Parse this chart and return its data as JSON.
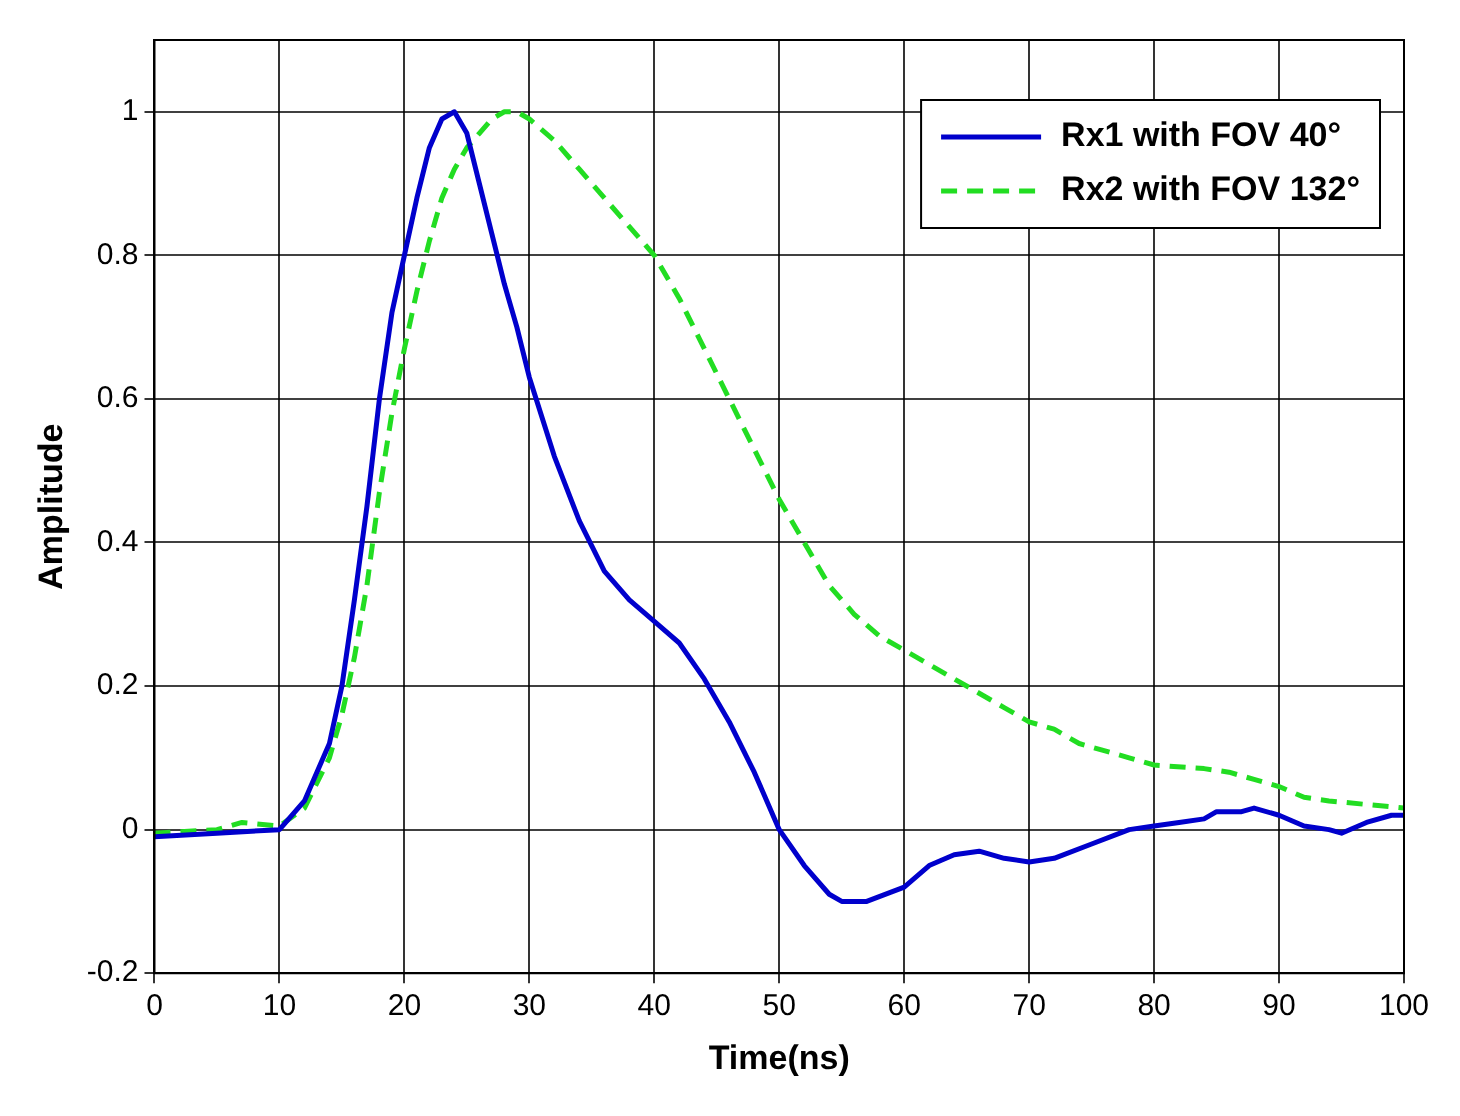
{
  "chart_data": {
    "type": "line",
    "xlabel": "Time(ns)",
    "ylabel": "Amplitude",
    "xlim": [
      0,
      100
    ],
    "xticks": [
      0,
      10,
      20,
      30,
      40,
      50,
      60,
      70,
      80,
      90,
      100
    ],
    "ylim": [
      -0.2,
      1.1
    ],
    "yticks": [
      -0.2,
      0,
      0.2,
      0.4,
      0.6,
      0.8,
      1
    ],
    "grid": true,
    "legend": "top right",
    "marker": "none",
    "series": [
      {
        "name": "Rx1 with FOV 40°",
        "color": "#0000cc",
        "line_style": "solid",
        "x": [
          0,
          5,
          10,
          12,
          14,
          15,
          16,
          17,
          18,
          19,
          20,
          21,
          22,
          23,
          24,
          25,
          26,
          27,
          28,
          29,
          30,
          32,
          34,
          36,
          38,
          40,
          42,
          44,
          46,
          48,
          50,
          52,
          54,
          55,
          57,
          60,
          62,
          64,
          66,
          68,
          70,
          72,
          75,
          78,
          80,
          82,
          84,
          85,
          87,
          88,
          90,
          92,
          94,
          95,
          97,
          99,
          100
        ],
        "values": [
          -0.01,
          -0.005,
          0,
          0.04,
          0.12,
          0.2,
          0.32,
          0.45,
          0.6,
          0.72,
          0.8,
          0.88,
          0.95,
          0.99,
          1,
          0.97,
          0.9,
          0.83,
          0.76,
          0.7,
          0.63,
          0.52,
          0.43,
          0.36,
          0.32,
          0.29,
          0.26,
          0.21,
          0.15,
          0.08,
          0,
          -0.05,
          -0.09,
          -0.1,
          -0.1,
          -0.08,
          -0.05,
          -0.035,
          -0.03,
          -0.04,
          -0.045,
          -0.04,
          -0.02,
          0,
          0.005,
          0.01,
          0.015,
          0.025,
          0.025,
          0.03,
          0.02,
          0.005,
          0,
          -0.005,
          0.01,
          0.02,
          0.02
        ]
      },
      {
        "name": "Rx2 with FOV 132°",
        "color": "#22dd22",
        "line_style": "dashed",
        "x": [
          0,
          5,
          7,
          10,
          12,
          14,
          15,
          16,
          17,
          18,
          19,
          20,
          21,
          22,
          23,
          24,
          25,
          26,
          27,
          28,
          29,
          30,
          32,
          34,
          36,
          38,
          40,
          42,
          44,
          46,
          48,
          50,
          52,
          54,
          56,
          58,
          60,
          62,
          64,
          66,
          68,
          70,
          72,
          74,
          76,
          78,
          80,
          84,
          86,
          88,
          90,
          92,
          94,
          97,
          100
        ],
        "values": [
          -0.005,
          0,
          0.01,
          0.005,
          0.03,
          0.1,
          0.16,
          0.24,
          0.34,
          0.47,
          0.58,
          0.67,
          0.75,
          0.82,
          0.88,
          0.92,
          0.95,
          0.97,
          0.99,
          1,
          1,
          0.99,
          0.96,
          0.92,
          0.88,
          0.84,
          0.8,
          0.74,
          0.67,
          0.6,
          0.53,
          0.46,
          0.4,
          0.34,
          0.3,
          0.27,
          0.25,
          0.23,
          0.21,
          0.19,
          0.17,
          0.15,
          0.14,
          0.12,
          0.11,
          0.1,
          0.09,
          0.085,
          0.08,
          0.07,
          0.06,
          0.045,
          0.04,
          0.035,
          0.03
        ]
      }
    ]
  }
}
